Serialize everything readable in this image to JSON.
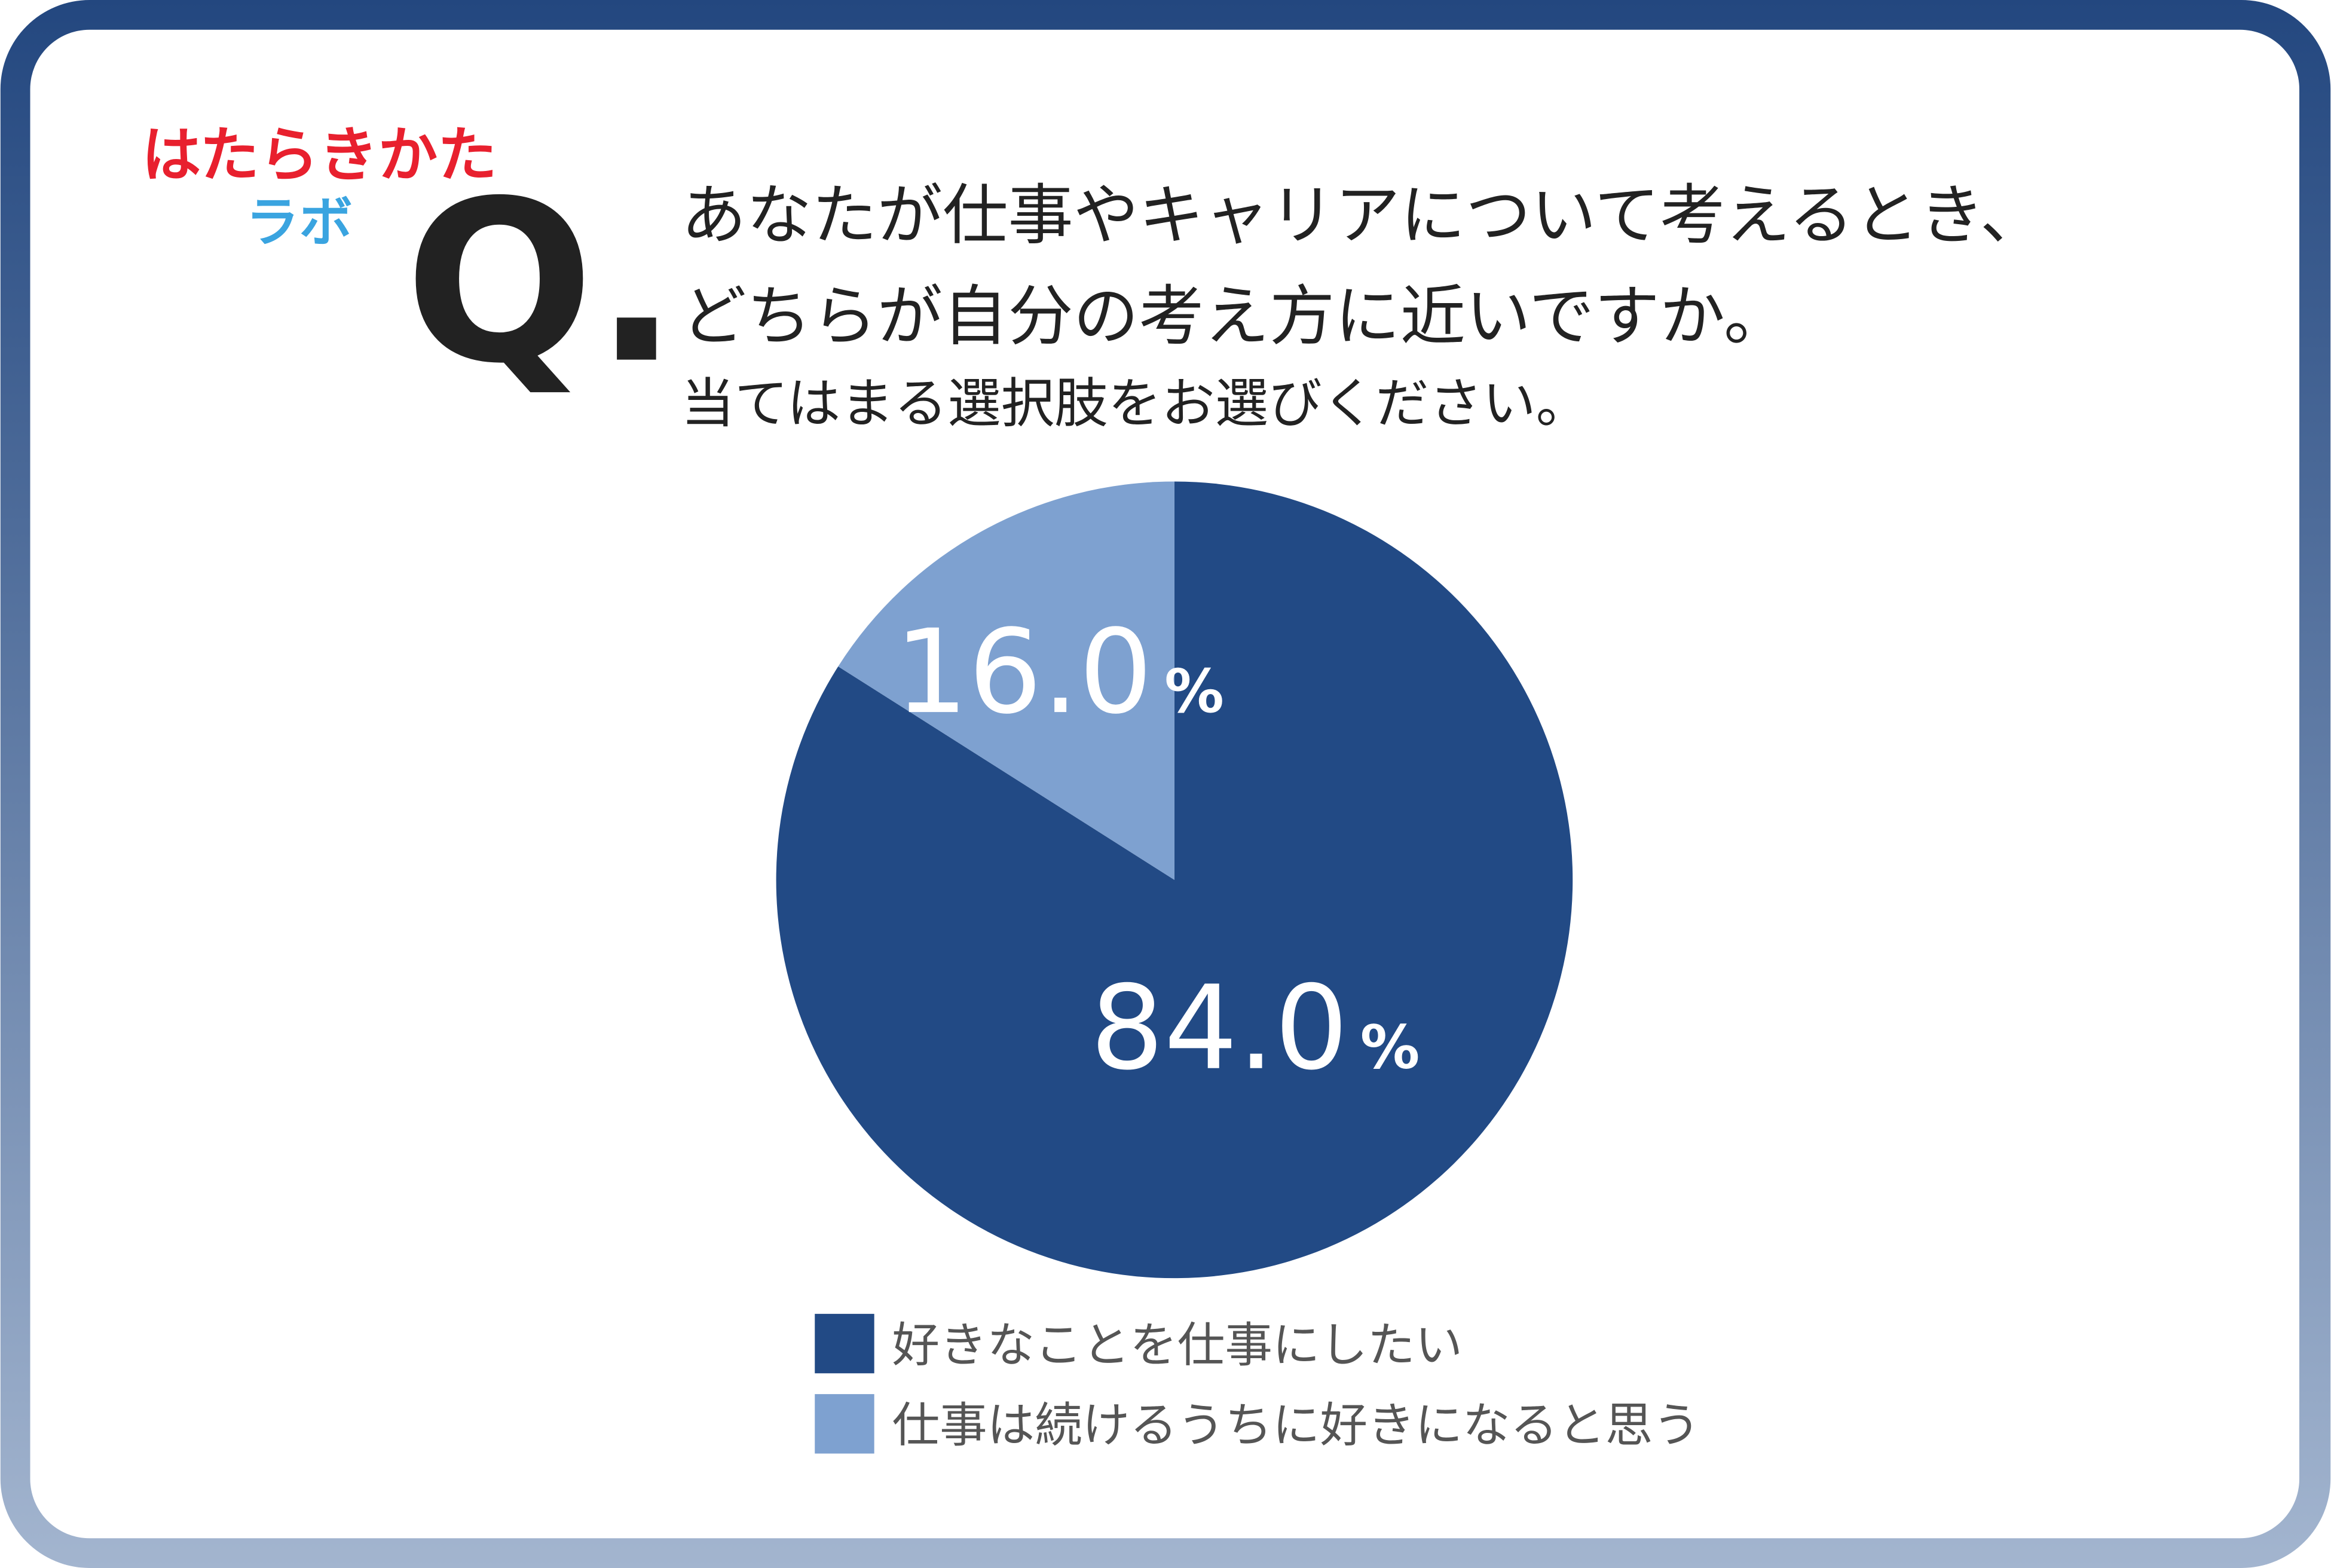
{
  "logo": [
    "はたらきかた",
    "ラボ"
  ],
  "question_mark": "Q.",
  "question": [
    "あなたが仕事やキャリアについて考えるとき、",
    "どちらが自分の考え方に近いですか。"
  ],
  "instruction": "当てはまる選択肢をお選びください。",
  "chart_data": {
    "type": "pie",
    "categories": [
      "好きなことを仕事にしたい",
      "仕事は続けるうちに好きになると思う"
    ],
    "values": [
      84.0,
      16.0
    ],
    "value_labels": [
      "84.0",
      "16.0"
    ],
    "label_unit": "%",
    "colors": [
      "#224a85",
      "#7ea1d0"
    ],
    "legend": "bottom"
  }
}
